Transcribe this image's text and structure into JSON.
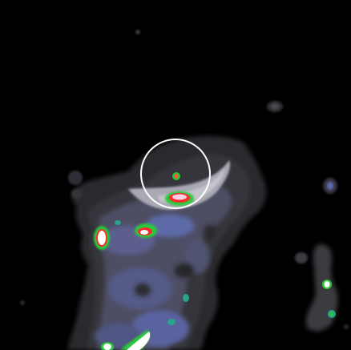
{
  "image": {
    "kind": "false-color astronomical intensity map",
    "visible_text": "",
    "colors": {
      "background": "#000000",
      "low_level": "#2e2e33",
      "mid_level": "#5b5c73",
      "blue_level": "#5d6aa8",
      "teal_level": "#2aa38a",
      "green_level": "#29c83a",
      "red_level": "#ff2a2a",
      "peak_level": "#ffffff",
      "marker_circle": "#ffffff"
    },
    "marker": {
      "shape": "circle",
      "present": true
    }
  }
}
